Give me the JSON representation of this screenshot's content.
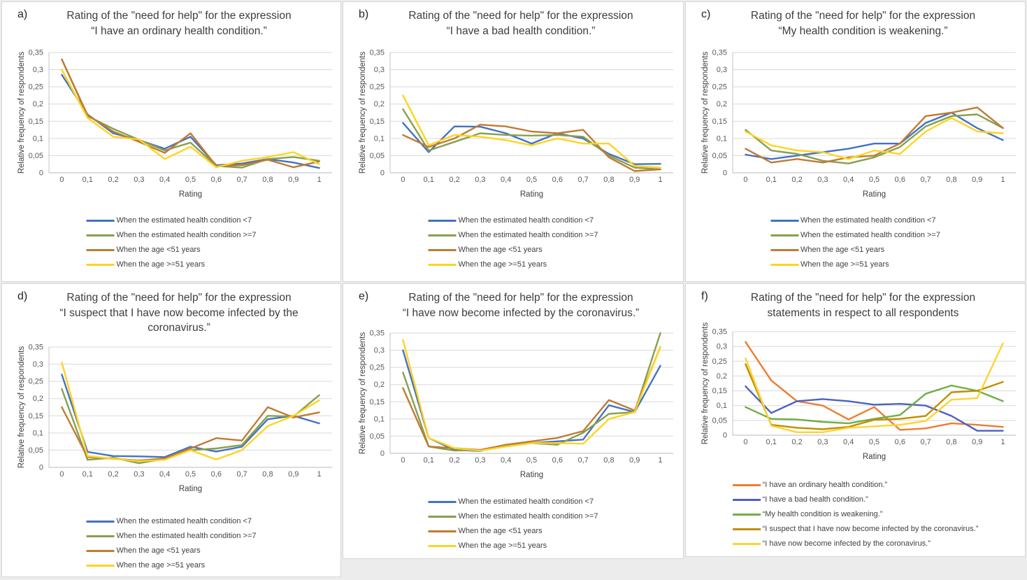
{
  "figure": {
    "description_axis": {
      "xlabel": "Rating",
      "ylabel": "Relative frequency of respondents",
      "x_tick_labels": [
        "0",
        "0,1",
        "0,2",
        "0,3",
        "0,4",
        "0,5",
        "0,6",
        "0,7",
        "0,8",
        "0,9",
        "1"
      ],
      "y_tick_labels": [
        "0",
        "0,05",
        "0,1",
        "0,15",
        "0,2",
        "0,25",
        "0,3",
        "0,35"
      ],
      "ylim": [
        0,
        0.35
      ]
    }
  },
  "chart_data": [
    {
      "id": "a",
      "letter": "a)",
      "title": "Rating of the \"need for help\" for the expression\n“I have an ordinary health condition.”",
      "type": "line",
      "xlabel": "Rating",
      "ylabel": "Relative frequency of respondents",
      "x": [
        0,
        0.1,
        0.2,
        0.3,
        0.4,
        0.5,
        0.6,
        0.7,
        0.8,
        0.9,
        1
      ],
      "x_tick_labels": [
        "0",
        "0,1",
        "0,2",
        "0,3",
        "0,4",
        "0,5",
        "0,6",
        "0,7",
        "0,8",
        "0,9",
        "1"
      ],
      "y_tick_labels": [
        "0",
        "0,05",
        "0,1",
        "0,15",
        "0,2",
        "0,25",
        "0,3",
        "0,35"
      ],
      "ylim": [
        0,
        0.35
      ],
      "grid": true,
      "legend_position": "bottom",
      "series": [
        {
          "name": "When the estimated health condition <7",
          "color": "#4472C4",
          "values": [
            0.285,
            0.17,
            0.115,
            0.095,
            0.07,
            0.105,
            0.022,
            0.027,
            0.04,
            0.03,
            0.014
          ]
        },
        {
          "name": "When the estimated health condition >=7",
          "color": "#86A04E",
          "values": [
            0.33,
            0.165,
            0.128,
            0.096,
            0.065,
            0.088,
            0.02,
            0.015,
            0.04,
            0.046,
            0.035
          ]
        },
        {
          "name": "When the age <51 years",
          "color": "#C07B33",
          "values": [
            0.33,
            0.168,
            0.12,
            0.09,
            0.058,
            0.115,
            0.02,
            0.022,
            0.038,
            0.016,
            0.033
          ]
        },
        {
          "name": "When the age >=51 years",
          "color": "#FFD41F",
          "values": [
            0.3,
            0.16,
            0.105,
            0.097,
            0.04,
            0.076,
            0.016,
            0.035,
            0.046,
            0.06,
            0.025
          ]
        }
      ]
    },
    {
      "id": "b",
      "letter": "b)",
      "title": "Rating of the \"need for help\" for the expression\n“I have a bad health condition.”",
      "type": "line",
      "xlabel": "Rating",
      "ylabel": "Relative frequency of respondents",
      "x": [
        0,
        0.1,
        0.2,
        0.3,
        0.4,
        0.5,
        0.6,
        0.7,
        0.8,
        0.9,
        1
      ],
      "x_tick_labels": [
        "0",
        "0,1",
        "0,2",
        "0,3",
        "0,4",
        "0,5",
        "0,6",
        "0,7",
        "0,8",
        "0,9",
        "1"
      ],
      "y_tick_labels": [
        "0",
        "0,05",
        "0,1",
        "0,15",
        "0,2",
        "0,25",
        "0,3",
        "0,35"
      ],
      "ylim": [
        0,
        0.35
      ],
      "grid": true,
      "legend_position": "bottom",
      "series": [
        {
          "name": "When the estimated health condition <7",
          "color": "#4472C4",
          "values": [
            0.145,
            0.06,
            0.135,
            0.134,
            0.115,
            0.085,
            0.115,
            0.1,
            0.055,
            0.025,
            0.026
          ]
        },
        {
          "name": "When the estimated health condition >=7",
          "color": "#86A04E",
          "values": [
            0.185,
            0.065,
            0.09,
            0.115,
            0.11,
            0.108,
            0.11,
            0.105,
            0.05,
            0.015,
            0.01
          ]
        },
        {
          "name": "When the age <51 years",
          "color": "#C07B33",
          "values": [
            0.11,
            0.075,
            0.1,
            0.14,
            0.135,
            0.12,
            0.115,
            0.125,
            0.045,
            0.005,
            0.01
          ]
        },
        {
          "name": "When the age >=51 years",
          "color": "#FFD41F",
          "values": [
            0.225,
            0.08,
            0.11,
            0.105,
            0.095,
            0.08,
            0.1,
            0.085,
            0.085,
            0.02,
            0.015
          ]
        }
      ]
    },
    {
      "id": "c",
      "letter": "c)",
      "title": "Rating of the \"need for help\" for the expression\n“My health condition is weakening.”",
      "type": "line",
      "xlabel": "Rating",
      "ylabel": "Relative frequency of respondents",
      "x": [
        0,
        0.1,
        0.2,
        0.3,
        0.4,
        0.5,
        0.6,
        0.7,
        0.8,
        0.9,
        1
      ],
      "x_tick_labels": [
        "0",
        "0,1",
        "0,2",
        "0,3",
        "0,4",
        "0,5",
        "0,6",
        "0,7",
        "0,8",
        "0,9",
        "1"
      ],
      "y_tick_labels": [
        "0",
        "0,05",
        "0,1",
        "0,15",
        "0,2",
        "0,25",
        "0,3",
        "0,35"
      ],
      "ylim": [
        0,
        0.35
      ],
      "grid": true,
      "legend_position": "bottom",
      "series": [
        {
          "name": "When the estimated health condition <7",
          "color": "#4472C4",
          "values": [
            0.053,
            0.04,
            0.05,
            0.06,
            0.07,
            0.085,
            0.085,
            0.145,
            0.175,
            0.13,
            0.095
          ]
        },
        {
          "name": "When the estimated health condition >=7",
          "color": "#86A04E",
          "values": [
            0.125,
            0.065,
            0.055,
            0.035,
            0.027,
            0.045,
            0.075,
            0.135,
            0.165,
            0.17,
            0.13
          ]
        },
        {
          "name": "When the age <51 years",
          "color": "#C07B33",
          "values": [
            0.07,
            0.03,
            0.04,
            0.03,
            0.045,
            0.05,
            0.085,
            0.165,
            0.175,
            0.19,
            0.13
          ]
        },
        {
          "name": "When the age >=51 years",
          "color": "#FFD41F",
          "values": [
            0.12,
            0.08,
            0.065,
            0.06,
            0.04,
            0.065,
            0.055,
            0.12,
            0.16,
            0.12,
            0.115
          ]
        }
      ]
    },
    {
      "id": "d",
      "letter": "d)",
      "title": "Rating of the \"need for help\" for the expression\n“I suspect that I have now become infected by the\ncoronavirus.”",
      "type": "line",
      "xlabel": "Rating",
      "ylabel": "Relative frequency of respondents",
      "x": [
        0,
        0.1,
        0.2,
        0.3,
        0.4,
        0.5,
        0.6,
        0.7,
        0.8,
        0.9,
        1
      ],
      "x_tick_labels": [
        "0",
        "0,1",
        "0,2",
        "0,3",
        "0,4",
        "0,5",
        "0,6",
        "0,7",
        "0,8",
        "0,9",
        "1"
      ],
      "y_tick_labels": [
        "0",
        "0,05",
        "0,1",
        "0,15",
        "0,2",
        "0,25",
        "0,3",
        "0,35"
      ],
      "ylim": [
        0,
        0.35
      ],
      "grid": true,
      "legend_position": "bottom",
      "series": [
        {
          "name": "When the estimated health condition <7",
          "color": "#4472C4",
          "values": [
            0.27,
            0.045,
            0.033,
            0.032,
            0.03,
            0.06,
            0.046,
            0.06,
            0.14,
            0.15,
            0.128
          ]
        },
        {
          "name": "When the estimated health condition >=7",
          "color": "#86A04E",
          "values": [
            0.228,
            0.022,
            0.028,
            0.012,
            0.025,
            0.05,
            0.055,
            0.065,
            0.15,
            0.148,
            0.21
          ]
        },
        {
          "name": "When the age <51 years",
          "color": "#C07B33",
          "values": [
            0.175,
            0.03,
            0.025,
            0.02,
            0.026,
            0.055,
            0.085,
            0.078,
            0.175,
            0.145,
            0.16
          ]
        },
        {
          "name": "When the age >=51 years",
          "color": "#FFD41F",
          "values": [
            0.305,
            0.033,
            0.025,
            0.018,
            0.022,
            0.05,
            0.023,
            0.05,
            0.12,
            0.15,
            0.195
          ]
        }
      ]
    },
    {
      "id": "e",
      "letter": "e)",
      "title": "Rating of the \"need for help\" for the expression\n“I have now become infected by the coronavirus.”",
      "type": "line",
      "xlabel": "Rating",
      "ylabel": "Relative frequency of respondents",
      "x": [
        0,
        0.1,
        0.2,
        0.3,
        0.4,
        0.5,
        0.6,
        0.7,
        0.8,
        0.9,
        1
      ],
      "x_tick_labels": [
        "0",
        "0,1",
        "0,2",
        "0,3",
        "0,4",
        "0,5",
        "0,6",
        "0,7",
        "0,8",
        "0,9",
        "1"
      ],
      "y_tick_labels": [
        "0",
        "0,05",
        "0,1",
        "0,15",
        "0,2",
        "0,25",
        "0,3",
        "0,35"
      ],
      "ylim": [
        0,
        0.35
      ],
      "grid": true,
      "legend_position": "bottom",
      "series": [
        {
          "name": "When the estimated health condition <7",
          "color": "#4472C4",
          "values": [
            0.3,
            0.045,
            0.01,
            0.007,
            0.025,
            0.03,
            0.035,
            0.04,
            0.14,
            0.12,
            0.255
          ]
        },
        {
          "name": "When the estimated health condition >=7",
          "color": "#86A04E",
          "values": [
            0.235,
            0.02,
            0.008,
            0.01,
            0.02,
            0.03,
            0.025,
            0.06,
            0.115,
            0.12,
            0.35
          ]
        },
        {
          "name": "When the age <51 years",
          "color": "#C07B33",
          "values": [
            0.19,
            0.02,
            0.015,
            0.01,
            0.025,
            0.035,
            0.045,
            0.065,
            0.155,
            0.125,
            0.31
          ]
        },
        {
          "name": "When the age >=51 years",
          "color": "#FFD41F",
          "values": [
            0.33,
            0.045,
            0.015,
            0.008,
            0.02,
            0.03,
            0.03,
            0.028,
            0.1,
            0.12,
            0.31
          ]
        }
      ]
    },
    {
      "id": "f",
      "letter": "f)",
      "title": "Rating of the \"need for help\" for the expression\nstatements in respect to all respondents",
      "type": "line",
      "xlabel": "Rating",
      "ylabel": "Relative frequency of respondents",
      "x": [
        0,
        0.1,
        0.2,
        0.3,
        0.4,
        0.5,
        0.6,
        0.7,
        0.8,
        0.9,
        1
      ],
      "x_tick_labels": [
        "0",
        "0,1",
        "0,2",
        "0,3",
        "0,4",
        "0,5",
        "0,6",
        "0,7",
        "0,8",
        "0,9",
        "1"
      ],
      "y_tick_labels": [
        "0",
        "0,05",
        "0,1",
        "0,15",
        "0,2",
        "0,25",
        "0,3",
        "0,35"
      ],
      "ylim": [
        0,
        0.35
      ],
      "grid": true,
      "legend_position": "bottom",
      "series": [
        {
          "name": "“I have an ordinary health condition.”",
          "color": "#ED7D31",
          "values": [
            0.315,
            0.185,
            0.115,
            0.1,
            0.053,
            0.095,
            0.018,
            0.023,
            0.04,
            0.035,
            0.028
          ]
        },
        {
          "name": "“I have a bad health condition.”",
          "color": "#4C61C2",
          "values": [
            0.165,
            0.075,
            0.115,
            0.122,
            0.115,
            0.103,
            0.106,
            0.1,
            0.065,
            0.015,
            0.015
          ]
        },
        {
          "name": "“My health condition is weakening.”",
          "color": "#70AD47",
          "values": [
            0.095,
            0.055,
            0.053,
            0.045,
            0.04,
            0.055,
            0.068,
            0.14,
            0.168,
            0.15,
            0.115
          ]
        },
        {
          "name": "“I suspect that I have now become infected by the coronavirus.”",
          "color": "#BF8F00",
          "values": [
            0.24,
            0.035,
            0.025,
            0.02,
            0.028,
            0.052,
            0.055,
            0.065,
            0.145,
            0.15,
            0.18
          ]
        },
        {
          "name": "“I have now become infected by the coronavirus.”",
          "color": "#FFD331",
          "values": [
            0.26,
            0.032,
            0.01,
            0.01,
            0.025,
            0.03,
            0.035,
            0.048,
            0.12,
            0.125,
            0.31
          ]
        }
      ]
    }
  ]
}
